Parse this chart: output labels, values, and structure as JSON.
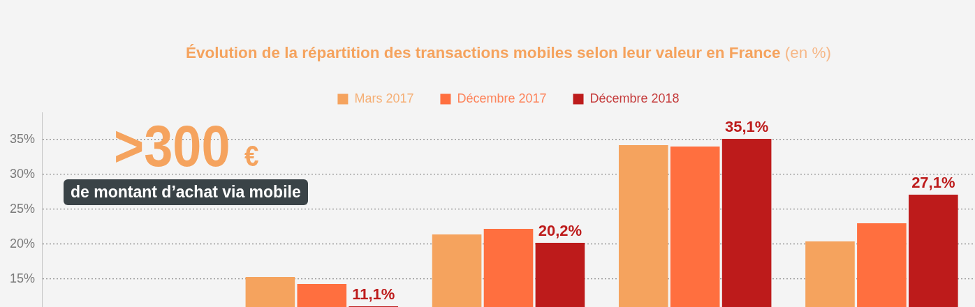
{
  "chart_data": {
    "type": "bar",
    "title": "Évolution de la répartition des transactions mobiles selon leur valeur en France",
    "subtitle": "(en %)",
    "annotations": [
      ">300 €",
      "de montant d’achat via mobile"
    ],
    "categories": [
      null,
      null,
      null,
      null,
      null
    ],
    "series": [
      {
        "name": "Mars 2017",
        "color": "#f5a35e",
        "values": [
          null,
          15.3,
          21.4,
          34.2,
          20.4
        ]
      },
      {
        "name": "Décembre 2017",
        "color": "#ff6f3f",
        "values": [
          null,
          14.3,
          22.2,
          34.0,
          23.0
        ]
      },
      {
        "name": "Décembre 2018",
        "color": "#bd1b1b",
        "values": [
          null,
          11.1,
          20.2,
          35.1,
          27.1
        ],
        "value_labels": [
          null,
          "11,1%",
          "20,2%",
          "35,1%",
          "27,1%"
        ]
      }
    ],
    "ylim": [
      11,
      38.9
    ],
    "yticks": [
      {
        "value": 15,
        "label": "15%"
      },
      {
        "value": 20,
        "label": "20%"
      },
      {
        "value": 25,
        "label": "25%"
      },
      {
        "value": 30,
        "label": "30%"
      },
      {
        "value": 35,
        "label": "35%"
      }
    ],
    "grid": "y",
    "legend": "top",
    "tick_labels": "y"
  }
}
